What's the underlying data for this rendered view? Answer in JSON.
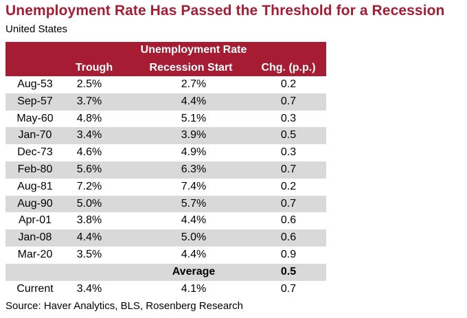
{
  "title": "Unemployment Rate Has Passed the Threshold for a Recession",
  "subtitle": "United States",
  "source": "Source: Haver Analytics, BLS, Rosenberg Research",
  "colors": {
    "header_bg": "#a61c33",
    "title": "#a61c33",
    "row_shade": "#d9d9d9"
  },
  "chart_data": {
    "type": "table",
    "header_group": "Unemployment Rate",
    "columns": [
      "",
      "Trough",
      "Recession Start",
      "Chg. (p.p.)"
    ],
    "rows": [
      [
        "Aug-53",
        "2.5%",
        "2.7%",
        "0.2"
      ],
      [
        "Sep-57",
        "3.7%",
        "4.4%",
        "0.7"
      ],
      [
        "May-60",
        "4.8%",
        "5.1%",
        "0.3"
      ],
      [
        "Jan-70",
        "3.4%",
        "3.9%",
        "0.5"
      ],
      [
        "Dec-73",
        "4.6%",
        "4.9%",
        "0.3"
      ],
      [
        "Feb-80",
        "5.6%",
        "6.3%",
        "0.7"
      ],
      [
        "Aug-81",
        "7.2%",
        "7.4%",
        "0.2"
      ],
      [
        "Aug-90",
        "5.0%",
        "5.7%",
        "0.7"
      ],
      [
        "Apr-01",
        "3.8%",
        "4.4%",
        "0.6"
      ],
      [
        "Jan-08",
        "4.4%",
        "5.0%",
        "0.6"
      ],
      [
        "Mar-20",
        "3.5%",
        "4.4%",
        "0.9"
      ]
    ],
    "average": {
      "label": "Average",
      "value": "0.5"
    },
    "current": [
      "Current",
      "3.4%",
      "4.1%",
      "0.7"
    ]
  }
}
